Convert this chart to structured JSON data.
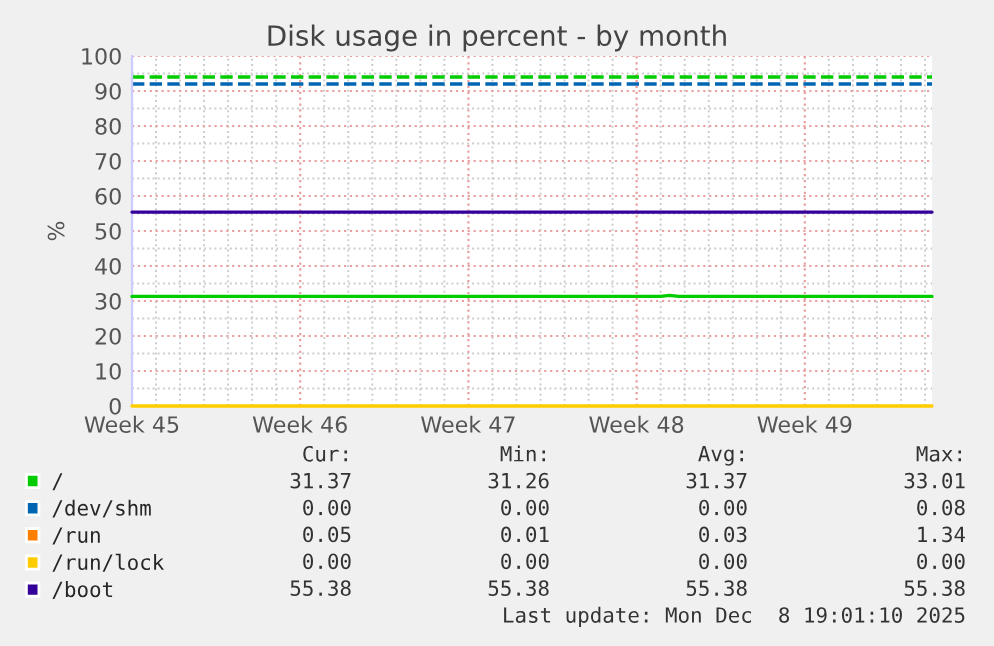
{
  "chart_data": {
    "type": "line",
    "title": "Disk usage in percent - by month",
    "ylabel": "%",
    "xlim": [
      "2025-11-03",
      "2025-12-06T07:00"
    ],
    "xticks": [
      {
        "value": "2025-11-03",
        "label": "Week 45"
      },
      {
        "value": "2025-11-10",
        "label": "Week 46"
      },
      {
        "value": "2025-11-17",
        "label": "Week 47"
      },
      {
        "value": "2025-11-24",
        "label": "Week 48"
      },
      {
        "value": "2025-12-01",
        "label": "Week 49"
      }
    ],
    "ylim": [
      0,
      100
    ],
    "yticks": [
      0,
      10,
      20,
      30,
      40,
      50,
      60,
      70,
      80,
      90,
      100
    ],
    "grid": true,
    "legend": "bottom",
    "marker": "none",
    "line_style": "solid",
    "series": [
      {
        "name": "/",
        "color": "#00cc00",
        "x": [
          "2025-11-03",
          "2025-11-25",
          "2025-11-25T09:00",
          "2025-11-25T18:00",
          "2025-12-06T07:00"
        ],
        "values": [
          31.3,
          31.3,
          31.6,
          31.3,
          31.3
        ]
      },
      {
        "name": "/dev/shm",
        "color": "#0066b3"
      },
      {
        "name": "/run",
        "color": "#ff8000"
      },
      {
        "name": "/run/lock",
        "color": "#ffcc00",
        "x": [
          "2025-11-03",
          "2025-12-06T07:00"
        ],
        "values": [
          0,
          0
        ]
      },
      {
        "name": "/boot",
        "color": "#330099",
        "x": [
          "2025-11-03",
          "2025-12-06T07:00"
        ],
        "values": [
          55.4,
          55.4
        ]
      }
    ],
    "ref_lines": [
      {
        "axis": "y",
        "value": 94,
        "color": "#00cc00",
        "line_style": "dashed"
      },
      {
        "axis": "y",
        "value": 92,
        "color": "#0066b3",
        "line_style": "dashed"
      }
    ],
    "annotations": [
      "Cur:",
      "Min:",
      "Avg:",
      "Max:",
      "31.37",
      "31.26",
      "31.37",
      "33.01",
      "0.00",
      "0.00",
      "0.00",
      "0.08",
      "0.05",
      "0.01",
      "0.03",
      "1.34",
      "0.00",
      "0.00",
      "0.00",
      "0.00",
      "55.38",
      "55.38",
      "55.38",
      "55.38",
      "Last update: Mon Dec  8 19:01:10 2025"
    ]
  }
}
